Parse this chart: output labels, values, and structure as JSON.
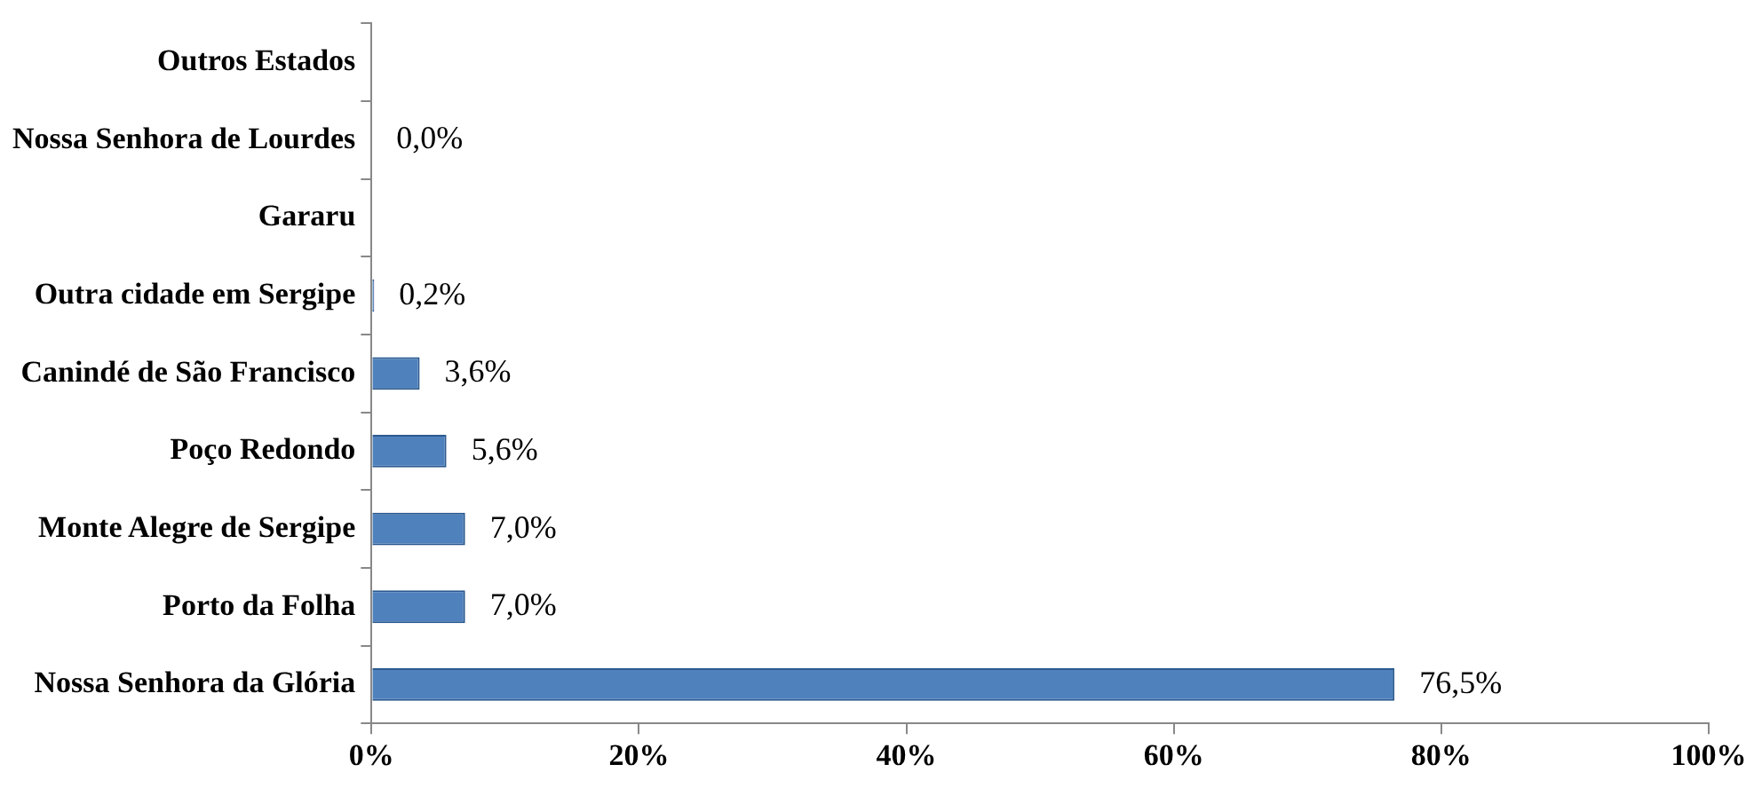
{
  "chart_data": {
    "type": "bar",
    "orientation": "horizontal",
    "categories": [
      "Outros Estados",
      "Nossa Senhora de Lourdes",
      "Gararu",
      "Outra cidade em Sergipe",
      "Canindé de São Francisco",
      "Poço Redondo",
      "Monte Alegre de Sergipe",
      "Porto da Folha",
      "Nossa Senhora da Glória"
    ],
    "values": [
      0,
      0.0,
      0,
      0.2,
      3.6,
      5.6,
      7.0,
      7.0,
      76.5
    ],
    "value_labels": [
      null,
      "0,0%",
      null,
      "0,2%",
      "3,6%",
      "5,6%",
      "7,0%",
      "7,0%",
      "76,5%"
    ],
    "color": "#4f81bd",
    "xlim": [
      0,
      100
    ],
    "xticks": [
      {
        "value": 0,
        "label": "0%"
      },
      {
        "value": 20,
        "label": "20%"
      },
      {
        "value": 40,
        "label": "40%"
      },
      {
        "value": 60,
        "label": "60%"
      },
      {
        "value": 80,
        "label": "80%"
      },
      {
        "value": 100,
        "label": "100%"
      }
    ],
    "grid": false,
    "legend": false
  }
}
